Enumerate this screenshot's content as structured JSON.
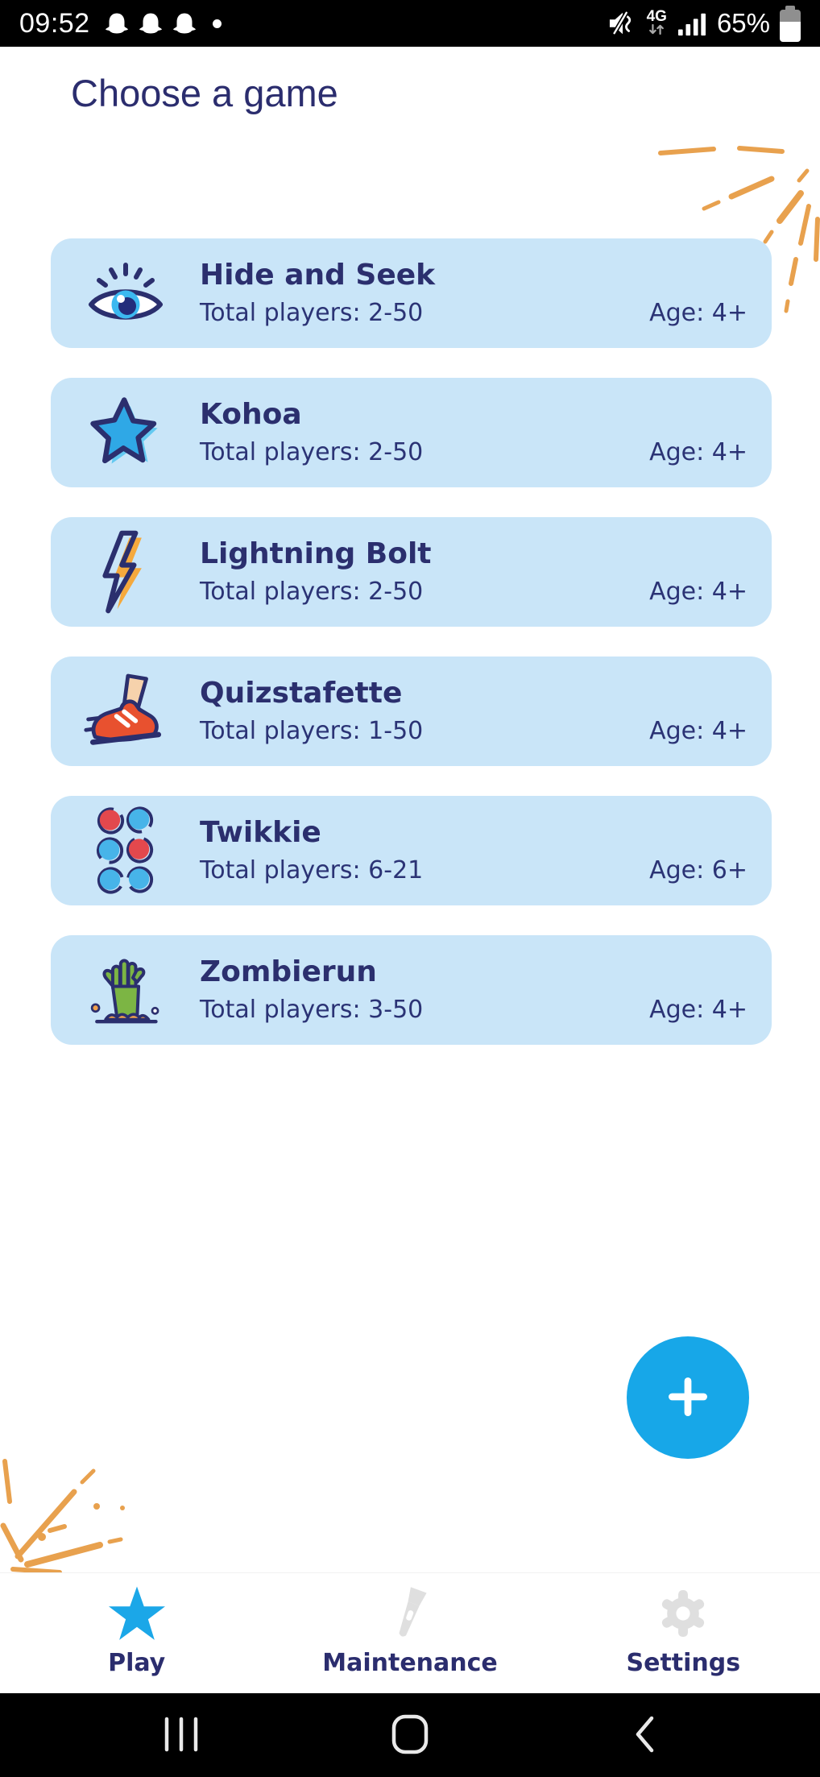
{
  "colors": {
    "navy": "#2B2F6E",
    "card_background": "#C9E5F8",
    "accent_blue": "#17A7E8",
    "decoration_orange": "#E8A14E",
    "inactive_gray": "#DFDFDF",
    "dot_red": "#E3484D",
    "dot_blue": "#47B4E9"
  },
  "status_bar": {
    "time": "09:52",
    "network": "4G",
    "battery": "65%",
    "notification_icons": [
      "snapchat-ghost-icon",
      "snapchat-ghost-icon",
      "snapchat-ghost-icon",
      "notification-dot-icon"
    ],
    "system_icons": [
      "mute-vibrate-icon",
      "data-arrows-icon",
      "signal-strength-icon",
      "battery-icon"
    ]
  },
  "header": {
    "title": "Choose a game"
  },
  "games": [
    {
      "name": "Hide and Seek",
      "players": "Total players: 2-50",
      "age": "Age: 4+",
      "icon": "eye-icon"
    },
    {
      "name": "Kohoa",
      "players": "Total players: 2-50",
      "age": "Age: 4+",
      "icon": "star-game-icon"
    },
    {
      "name": "Lightning Bolt",
      "players": "Total players: 2-50",
      "age": "Age: 4+",
      "icon": "lightning-icon"
    },
    {
      "name": "Quizstafette",
      "players": "Total players: 1-50",
      "age": "Age: 4+",
      "icon": "running-shoe-icon"
    },
    {
      "name": "Twikkie",
      "players": "Total players: 6-21",
      "age": "Age: 6+",
      "icon": "dots-icon"
    },
    {
      "name": "Zombierun",
      "players": "Total players: 3-50",
      "age": "Age: 4+",
      "icon": "zombie-hand-icon"
    }
  ],
  "fab": {
    "icon": "plus-icon"
  },
  "bottom_nav": {
    "items": [
      {
        "id": "play",
        "label": "Play",
        "icon": "play-star-icon",
        "active": true
      },
      {
        "id": "maintenance",
        "label": "Maintenance",
        "icon": "flashlight-icon",
        "active": false
      },
      {
        "id": "settings",
        "label": "Settings",
        "icon": "gear-icon",
        "active": false
      }
    ]
  },
  "android_nav": {
    "buttons": [
      {
        "id": "recents",
        "icon": "recents-icon"
      },
      {
        "id": "home",
        "icon": "home-icon"
      },
      {
        "id": "back",
        "icon": "back-icon"
      }
    ]
  }
}
